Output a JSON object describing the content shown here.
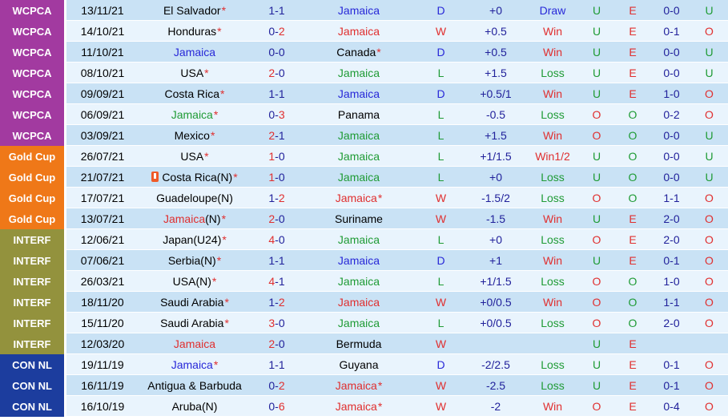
{
  "meta": {
    "star_char": "*",
    "dash": "-"
  },
  "palette": {
    "red": "#e02f2f",
    "green": "#1f9b35",
    "blue": "#2828d8",
    "navy": "#21219b",
    "black": "#000000",
    "badge_text": "#ffffff",
    "stripe_dark": "#c9e2f5",
    "stripe_light": "#e9f4fd",
    "icon_bg": "#ef5a28",
    "competitions": {
      "WCPCA": "#a23aa0",
      "Gold Cup": "#ef7818",
      "INTERF": "#93923d",
      "CON NL": "#1c3d9e"
    }
  },
  "rows": [
    {
      "competition": "WCPCA",
      "date": "13/11/21",
      "home": {
        "name": "El Salvador",
        "suffix": "",
        "color": "black",
        "star": true,
        "icon": false
      },
      "score": {
        "h": "1",
        "a": "1",
        "hw": false,
        "aw": false
      },
      "away": {
        "name": "Jamaica",
        "suffix": "",
        "color": "blue",
        "star": false,
        "icon": false
      },
      "letter": {
        "text": "D",
        "color": "blue"
      },
      "handicap": "+0",
      "result": {
        "text": "Draw",
        "color": "blue"
      },
      "ou": "U",
      "oe": "E",
      "ht": "0-0",
      "ht_ou": "U"
    },
    {
      "competition": "WCPCA",
      "date": "14/10/21",
      "home": {
        "name": "Honduras",
        "suffix": "",
        "color": "black",
        "star": true,
        "icon": false
      },
      "score": {
        "h": "0",
        "a": "2",
        "hw": false,
        "aw": true
      },
      "away": {
        "name": "Jamaica",
        "suffix": "",
        "color": "red",
        "star": false,
        "icon": false
      },
      "letter": {
        "text": "W",
        "color": "red"
      },
      "handicap": "+0.5",
      "result": {
        "text": "Win",
        "color": "red"
      },
      "ou": "U",
      "oe": "E",
      "ht": "0-1",
      "ht_ou": "O"
    },
    {
      "competition": "WCPCA",
      "date": "11/10/21",
      "home": {
        "name": "Jamaica",
        "suffix": "",
        "color": "blue",
        "star": false,
        "icon": false
      },
      "score": {
        "h": "0",
        "a": "0",
        "hw": false,
        "aw": false
      },
      "away": {
        "name": "Canada",
        "suffix": "",
        "color": "black",
        "star": true,
        "icon": false
      },
      "letter": {
        "text": "D",
        "color": "blue"
      },
      "handicap": "+0.5",
      "result": {
        "text": "Win",
        "color": "red"
      },
      "ou": "U",
      "oe": "E",
      "ht": "0-0",
      "ht_ou": "U"
    },
    {
      "competition": "WCPCA",
      "date": "08/10/21",
      "home": {
        "name": "USA",
        "suffix": "",
        "color": "black",
        "star": true,
        "icon": false
      },
      "score": {
        "h": "2",
        "a": "0",
        "hw": true,
        "aw": false
      },
      "away": {
        "name": "Jamaica",
        "suffix": "",
        "color": "green",
        "star": false,
        "icon": false
      },
      "letter": {
        "text": "L",
        "color": "green"
      },
      "handicap": "+1.5",
      "result": {
        "text": "Loss",
        "color": "green"
      },
      "ou": "U",
      "oe": "E",
      "ht": "0-0",
      "ht_ou": "U"
    },
    {
      "competition": "WCPCA",
      "date": "09/09/21",
      "home": {
        "name": "Costa Rica",
        "suffix": "",
        "color": "black",
        "star": true,
        "icon": false
      },
      "score": {
        "h": "1",
        "a": "1",
        "hw": false,
        "aw": false
      },
      "away": {
        "name": "Jamaica",
        "suffix": "",
        "color": "blue",
        "star": false,
        "icon": false
      },
      "letter": {
        "text": "D",
        "color": "blue"
      },
      "handicap": "+0.5/1",
      "result": {
        "text": "Win",
        "color": "red"
      },
      "ou": "U",
      "oe": "E",
      "ht": "1-0",
      "ht_ou": "O"
    },
    {
      "competition": "WCPCA",
      "date": "06/09/21",
      "home": {
        "name": "Jamaica",
        "suffix": "",
        "color": "green",
        "star": true,
        "icon": false
      },
      "score": {
        "h": "0",
        "a": "3",
        "hw": false,
        "aw": true
      },
      "away": {
        "name": "Panama",
        "suffix": "",
        "color": "black",
        "star": false,
        "icon": false
      },
      "letter": {
        "text": "L",
        "color": "green"
      },
      "handicap": "-0.5",
      "result": {
        "text": "Loss",
        "color": "green"
      },
      "ou": "O",
      "oe": "O",
      "ht": "0-2",
      "ht_ou": "O"
    },
    {
      "competition": "WCPCA",
      "date": "03/09/21",
      "home": {
        "name": "Mexico",
        "suffix": "",
        "color": "black",
        "star": true,
        "icon": false
      },
      "score": {
        "h": "2",
        "a": "1",
        "hw": true,
        "aw": false
      },
      "away": {
        "name": "Jamaica",
        "suffix": "",
        "color": "green",
        "star": false,
        "icon": false
      },
      "letter": {
        "text": "L",
        "color": "green"
      },
      "handicap": "+1.5",
      "result": {
        "text": "Win",
        "color": "red"
      },
      "ou": "O",
      "oe": "O",
      "ht": "0-0",
      "ht_ou": "U"
    },
    {
      "competition": "Gold Cup",
      "date": "26/07/21",
      "home": {
        "name": "USA",
        "suffix": "",
        "color": "black",
        "star": true,
        "icon": false
      },
      "score": {
        "h": "1",
        "a": "0",
        "hw": true,
        "aw": false
      },
      "away": {
        "name": "Jamaica",
        "suffix": "",
        "color": "green",
        "star": false,
        "icon": false
      },
      "letter": {
        "text": "L",
        "color": "green"
      },
      "handicap": "+1/1.5",
      "result": {
        "text": "Win1/2",
        "color": "red"
      },
      "ou": "U",
      "oe": "O",
      "ht": "0-0",
      "ht_ou": "U"
    },
    {
      "competition": "Gold Cup",
      "date": "21/07/21",
      "home": {
        "name": "Costa Rica",
        "suffix": "(N)",
        "color": "black",
        "star": true,
        "icon": true
      },
      "score": {
        "h": "1",
        "a": "0",
        "hw": true,
        "aw": false
      },
      "away": {
        "name": "Jamaica",
        "suffix": "",
        "color": "green",
        "star": false,
        "icon": false
      },
      "letter": {
        "text": "L",
        "color": "green"
      },
      "handicap": "+0",
      "result": {
        "text": "Loss",
        "color": "green"
      },
      "ou": "U",
      "oe": "O",
      "ht": "0-0",
      "ht_ou": "U"
    },
    {
      "competition": "Gold Cup",
      "date": "17/07/21",
      "home": {
        "name": "Guadeloupe",
        "suffix": "(N)",
        "color": "black",
        "star": false,
        "icon": false
      },
      "score": {
        "h": "1",
        "a": "2",
        "hw": false,
        "aw": true
      },
      "away": {
        "name": "Jamaica",
        "suffix": "",
        "color": "red",
        "star": true,
        "icon": false
      },
      "letter": {
        "text": "W",
        "color": "red"
      },
      "handicap": "-1.5/2",
      "result": {
        "text": "Loss",
        "color": "green"
      },
      "ou": "O",
      "oe": "O",
      "ht": "1-1",
      "ht_ou": "O"
    },
    {
      "competition": "Gold Cup",
      "date": "13/07/21",
      "home": {
        "name": "Jamaica",
        "suffix": "(N)",
        "color": "red",
        "star": true,
        "icon": false
      },
      "score": {
        "h": "2",
        "a": "0",
        "hw": true,
        "aw": false
      },
      "away": {
        "name": "Suriname",
        "suffix": "",
        "color": "black",
        "star": false,
        "icon": false
      },
      "letter": {
        "text": "W",
        "color": "red"
      },
      "handicap": "-1.5",
      "result": {
        "text": "Win",
        "color": "red"
      },
      "ou": "U",
      "oe": "E",
      "ht": "2-0",
      "ht_ou": "O"
    },
    {
      "competition": "INTERF",
      "date": "12/06/21",
      "home": {
        "name": "Japan",
        "suffix": "(U24)",
        "color": "black",
        "star": true,
        "icon": false
      },
      "score": {
        "h": "4",
        "a": "0",
        "hw": true,
        "aw": false
      },
      "away": {
        "name": "Jamaica",
        "suffix": "",
        "color": "green",
        "star": false,
        "icon": false
      },
      "letter": {
        "text": "L",
        "color": "green"
      },
      "handicap": "+0",
      "result": {
        "text": "Loss",
        "color": "green"
      },
      "ou": "O",
      "oe": "E",
      "ht": "2-0",
      "ht_ou": "O"
    },
    {
      "competition": "INTERF",
      "date": "07/06/21",
      "home": {
        "name": "Serbia",
        "suffix": "(N)",
        "color": "black",
        "star": true,
        "icon": false
      },
      "score": {
        "h": "1",
        "a": "1",
        "hw": false,
        "aw": false
      },
      "away": {
        "name": "Jamaica",
        "suffix": "",
        "color": "blue",
        "star": false,
        "icon": false
      },
      "letter": {
        "text": "D",
        "color": "blue"
      },
      "handicap": "+1",
      "result": {
        "text": "Win",
        "color": "red"
      },
      "ou": "U",
      "oe": "E",
      "ht": "0-1",
      "ht_ou": "O"
    },
    {
      "competition": "INTERF",
      "date": "26/03/21",
      "home": {
        "name": "USA",
        "suffix": "(N)",
        "color": "black",
        "star": true,
        "icon": false
      },
      "score": {
        "h": "4",
        "a": "1",
        "hw": true,
        "aw": false
      },
      "away": {
        "name": "Jamaica",
        "suffix": "",
        "color": "green",
        "star": false,
        "icon": false
      },
      "letter": {
        "text": "L",
        "color": "green"
      },
      "handicap": "+1/1.5",
      "result": {
        "text": "Loss",
        "color": "green"
      },
      "ou": "O",
      "oe": "O",
      "ht": "1-0",
      "ht_ou": "O"
    },
    {
      "competition": "INTERF",
      "date": "18/11/20",
      "home": {
        "name": "Saudi Arabia",
        "suffix": "",
        "color": "black",
        "star": true,
        "icon": false
      },
      "score": {
        "h": "1",
        "a": "2",
        "hw": false,
        "aw": true
      },
      "away": {
        "name": "Jamaica",
        "suffix": "",
        "color": "red",
        "star": false,
        "icon": false
      },
      "letter": {
        "text": "W",
        "color": "red"
      },
      "handicap": "+0/0.5",
      "result": {
        "text": "Win",
        "color": "red"
      },
      "ou": "O",
      "oe": "O",
      "ht": "1-1",
      "ht_ou": "O"
    },
    {
      "competition": "INTERF",
      "date": "15/11/20",
      "home": {
        "name": "Saudi Arabia",
        "suffix": "",
        "color": "black",
        "star": true,
        "icon": false
      },
      "score": {
        "h": "3",
        "a": "0",
        "hw": true,
        "aw": false
      },
      "away": {
        "name": "Jamaica",
        "suffix": "",
        "color": "green",
        "star": false,
        "icon": false
      },
      "letter": {
        "text": "L",
        "color": "green"
      },
      "handicap": "+0/0.5",
      "result": {
        "text": "Loss",
        "color": "green"
      },
      "ou": "O",
      "oe": "O",
      "ht": "2-0",
      "ht_ou": "O"
    },
    {
      "competition": "INTERF",
      "date": "12/03/20",
      "home": {
        "name": "Jamaica",
        "suffix": "",
        "color": "red",
        "star": false,
        "icon": false
      },
      "score": {
        "h": "2",
        "a": "0",
        "hw": true,
        "aw": false
      },
      "away": {
        "name": "Bermuda",
        "suffix": "",
        "color": "black",
        "star": false,
        "icon": false
      },
      "letter": {
        "text": "W",
        "color": "red"
      },
      "handicap": "",
      "result": {
        "text": "",
        "color": "blue"
      },
      "ou": "U",
      "oe": "E",
      "ht": "",
      "ht_ou": ""
    },
    {
      "competition": "CON NL",
      "date": "19/11/19",
      "home": {
        "name": "Jamaica",
        "suffix": "",
        "color": "blue",
        "star": true,
        "icon": false
      },
      "score": {
        "h": "1",
        "a": "1",
        "hw": false,
        "aw": false
      },
      "away": {
        "name": "Guyana",
        "suffix": "",
        "color": "black",
        "star": false,
        "icon": false
      },
      "letter": {
        "text": "D",
        "color": "blue"
      },
      "handicap": "-2/2.5",
      "result": {
        "text": "Loss",
        "color": "green"
      },
      "ou": "U",
      "oe": "E",
      "ht": "0-1",
      "ht_ou": "O"
    },
    {
      "competition": "CON NL",
      "date": "16/11/19",
      "home": {
        "name": "Antigua & Barbuda",
        "suffix": "",
        "color": "black",
        "star": false,
        "icon": false
      },
      "score": {
        "h": "0",
        "a": "2",
        "hw": false,
        "aw": true
      },
      "away": {
        "name": "Jamaica",
        "suffix": "",
        "color": "red",
        "star": true,
        "icon": false
      },
      "letter": {
        "text": "W",
        "color": "red"
      },
      "handicap": "-2.5",
      "result": {
        "text": "Loss",
        "color": "green"
      },
      "ou": "U",
      "oe": "E",
      "ht": "0-1",
      "ht_ou": "O"
    },
    {
      "competition": "CON NL",
      "date": "16/10/19",
      "home": {
        "name": "Aruba",
        "suffix": "(N)",
        "color": "black",
        "star": false,
        "icon": false
      },
      "score": {
        "h": "0",
        "a": "6",
        "hw": false,
        "aw": true
      },
      "away": {
        "name": "Jamaica",
        "suffix": "",
        "color": "red",
        "star": true,
        "icon": false
      },
      "letter": {
        "text": "W",
        "color": "red"
      },
      "handicap": "-2",
      "result": {
        "text": "Win",
        "color": "red"
      },
      "ou": "O",
      "oe": "E",
      "ht": "0-4",
      "ht_ou": "O"
    }
  ]
}
